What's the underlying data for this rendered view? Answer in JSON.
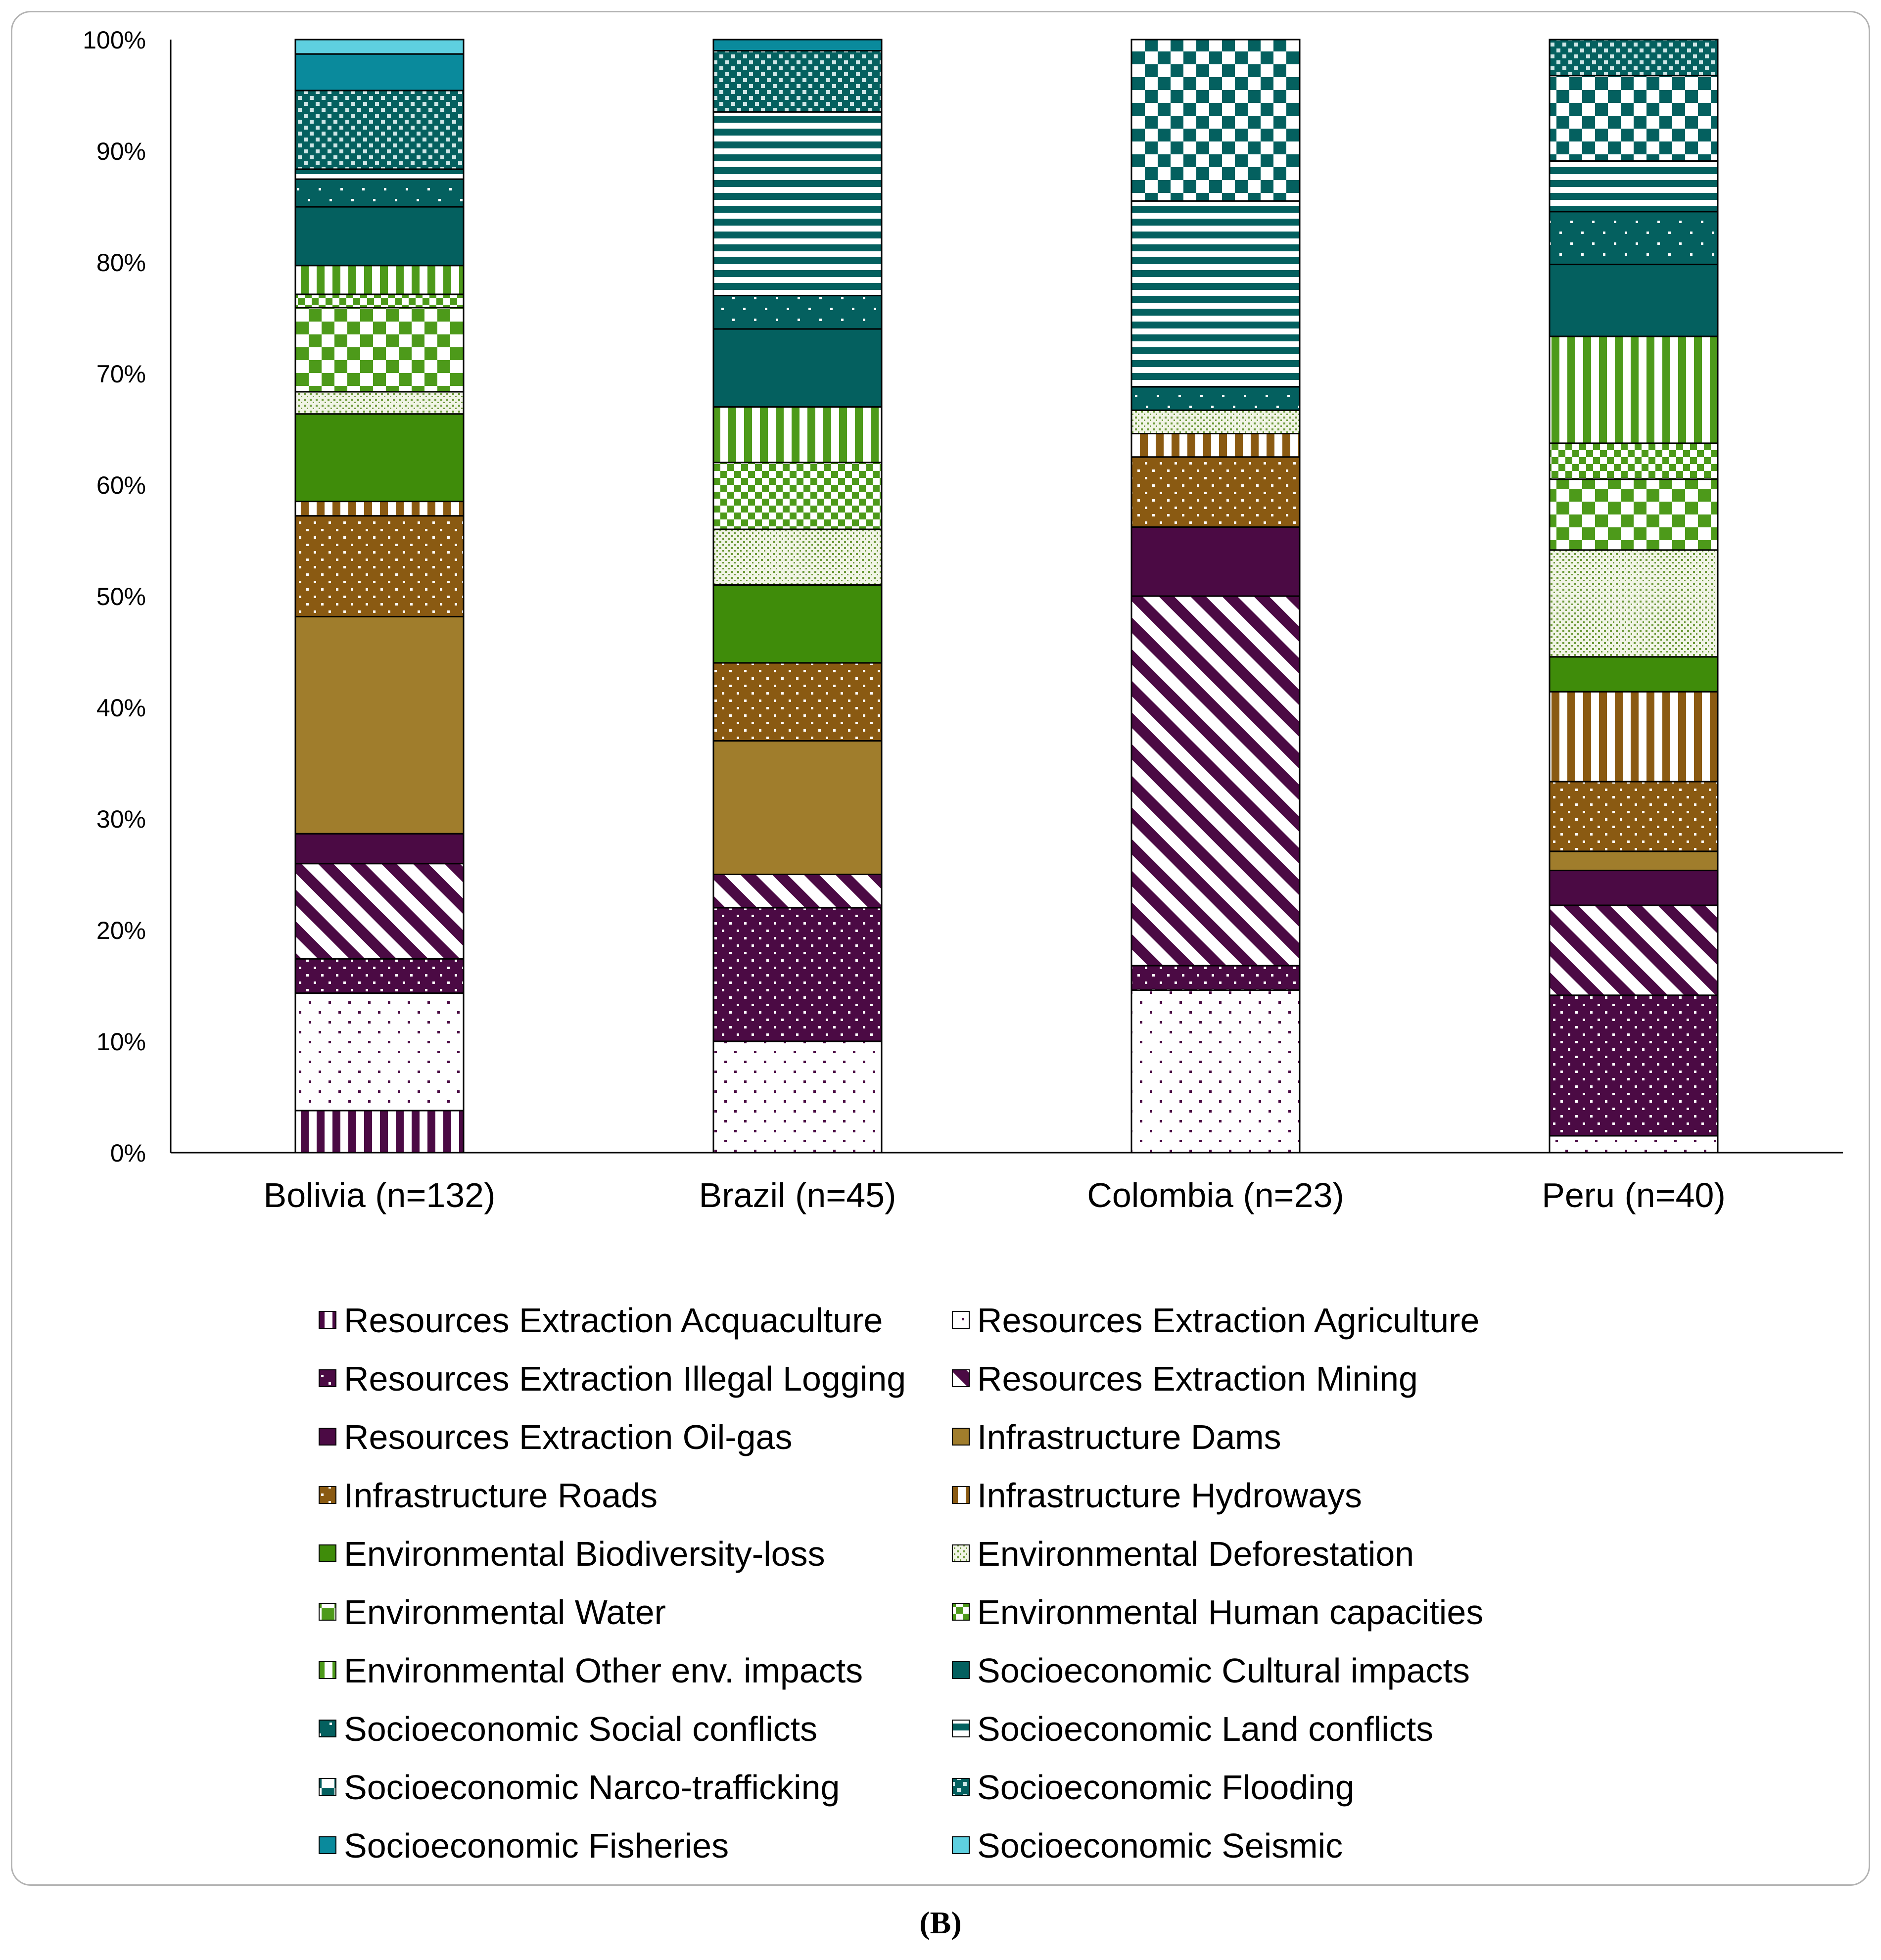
{
  "caption": "(B)",
  "chart_data": {
    "type": "bar",
    "stacked": true,
    "normalized": true,
    "title": "",
    "xlabel": "",
    "ylabel": "",
    "ylim": [
      0,
      100
    ],
    "yticks": [
      "0%",
      "10%",
      "20%",
      "30%",
      "40%",
      "50%",
      "60%",
      "70%",
      "80%",
      "90%",
      "100%"
    ],
    "legend_position": "bottom",
    "categories": [
      "Bolivia (n=132)",
      "Brazil (n=45)",
      "Colombia (n=23)",
      "Peru (n=40)"
    ],
    "series": [
      {
        "name": "Resources Extraction Acquaculture",
        "color": "#4b0a44",
        "pattern": "vstripe",
        "values": [
          3.8,
          0,
          0,
          0
        ]
      },
      {
        "name": "Resources Extraction Agriculture",
        "color": "#4b0a44",
        "pattern": "sparse-dots",
        "values": [
          10.6,
          10.0,
          14.6,
          1.5
        ]
      },
      {
        "name": "Resources Extraction Illegal Logging",
        "color": "#4b0a44",
        "pattern": "dense-dots",
        "values": [
          3.1,
          12.0,
          2.2,
          12.5
        ]
      },
      {
        "name": "Resources Extraction Mining",
        "color": "#4b0a44",
        "pattern": "diagonal",
        "values": [
          8.6,
          3.0,
          33.2,
          8.0
        ]
      },
      {
        "name": "Resources Extraction Oil-gas",
        "color": "#4b0a44",
        "pattern": "solid",
        "values": [
          2.7,
          0,
          6.2,
          3.1
        ]
      },
      {
        "name": "Infrastructure Dams",
        "color": "#a07d2c",
        "pattern": "solid",
        "values": [
          19.6,
          12.0,
          0,
          1.7
        ]
      },
      {
        "name": "Infrastructure Roads",
        "color": "#8a5a12",
        "pattern": "dense-dots",
        "values": [
          9.1,
          7.0,
          6.3,
          6.2
        ]
      },
      {
        "name": "Infrastructure Hydroways",
        "color": "#8a5a12",
        "pattern": "vstripe",
        "values": [
          1.3,
          0,
          2.1,
          8.0
        ]
      },
      {
        "name": "Environmental Biodiversity-loss",
        "color": "#3f8c0a",
        "pattern": "solid",
        "values": [
          7.9,
          7.0,
          0,
          3.1
        ]
      },
      {
        "name": "Environmental Deforestation",
        "color": "#6d9a3a",
        "pattern": "light-dots",
        "values": [
          2.0,
          5.0,
          2.1,
          9.5
        ]
      },
      {
        "name": "Environmental Water",
        "color": "#4d9a1a",
        "pattern": "checker",
        "values": [
          7.6,
          0,
          0,
          6.3
        ]
      },
      {
        "name": "Environmental Human capacities",
        "color": "#4d9a1a",
        "pattern": "small-checker",
        "values": [
          1.2,
          6.0,
          0,
          3.2
        ]
      },
      {
        "name": "Environmental Other env. impacts",
        "color": "#4d9a1a",
        "pattern": "vstripe",
        "values": [
          2.6,
          5.0,
          0,
          9.5
        ]
      },
      {
        "name": "Socioeconomic Cultural impacts",
        "color": "#04605f",
        "pattern": "solid",
        "values": [
          5.3,
          7.0,
          0,
          6.4
        ]
      },
      {
        "name": "Socioeconomic Social conflicts",
        "color": "#04605f",
        "pattern": "sparse-dark-dots",
        "values": [
          2.5,
          3.0,
          2.1,
          4.7
        ]
      },
      {
        "name": "Socioeconomic Land conflicts",
        "color": "#04605f",
        "pattern": "hstripe",
        "values": [
          0.9,
          16.5,
          16.7,
          4.5
        ]
      },
      {
        "name": "Socioeconomic Narco-trafficking",
        "color": "#04605f",
        "pattern": "checker",
        "values": [
          0,
          0,
          14.5,
          7.6
        ]
      },
      {
        "name": "Socioeconomic Flooding",
        "color": "#04605f",
        "pattern": "dense-light-dots",
        "values": [
          7.1,
          5.5,
          0,
          3.2
        ]
      },
      {
        "name": "Socioeconomic Fisheries",
        "color": "#0a8a9c",
        "pattern": "solid",
        "values": [
          3.3,
          1.0,
          0,
          0
        ]
      },
      {
        "name": "Socioeconomic Seismic",
        "color": "#5ed0e0",
        "pattern": "solid",
        "values": [
          1.3,
          0,
          0,
          0
        ]
      }
    ]
  }
}
